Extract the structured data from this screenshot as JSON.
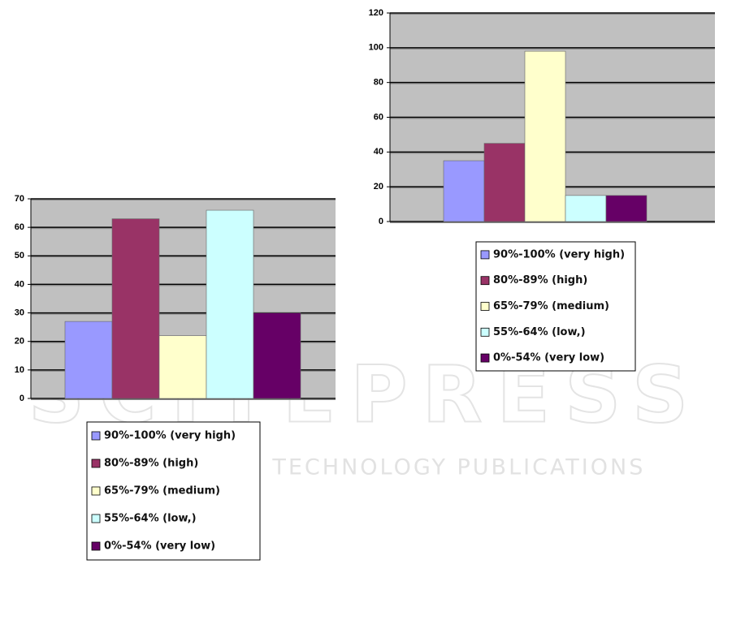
{
  "chart_data": [
    {
      "type": "bar",
      "series": [
        {
          "name": "90%-100% (very high)",
          "color": "#9999ff",
          "values": [
            27
          ]
        },
        {
          "name": "80%-89% (high)",
          "color": "#993366",
          "values": [
            63
          ]
        },
        {
          "name": "65%-79%  (medium)",
          "color": "#ffffcc",
          "values": [
            22
          ]
        },
        {
          "name": "55%-64% (low,)",
          "color": "#ccffff",
          "values": [
            66
          ]
        },
        {
          "name": "0%-54% (very low)",
          "color": "#660066",
          "values": [
            30
          ]
        }
      ],
      "ylim": [
        0,
        70
      ],
      "yticks": [
        0,
        10,
        20,
        30,
        40,
        50,
        60,
        70
      ],
      "grid": true
    },
    {
      "type": "bar",
      "series": [
        {
          "name": "90%-100% (very high)",
          "color": "#9999ff",
          "values": [
            35
          ]
        },
        {
          "name": "80%-89% (high)",
          "color": "#993366",
          "values": [
            45
          ]
        },
        {
          "name": "65%-79%  (medium)",
          "color": "#ffffcc",
          "values": [
            98
          ]
        },
        {
          "name": "55%-64% (low,)",
          "color": "#ccffff",
          "values": [
            15
          ]
        },
        {
          "name": "0%-54% (very low)",
          "color": "#660066",
          "values": [
            15
          ]
        }
      ],
      "ylim": [
        0,
        120
      ],
      "yticks": [
        0,
        20,
        40,
        60,
        80,
        100,
        120
      ],
      "grid": true
    }
  ],
  "watermark": {
    "line1": "SCITEPRESS",
    "line2": "SCIENCE AND TECHNOLOGY PUBLICATIONS"
  }
}
